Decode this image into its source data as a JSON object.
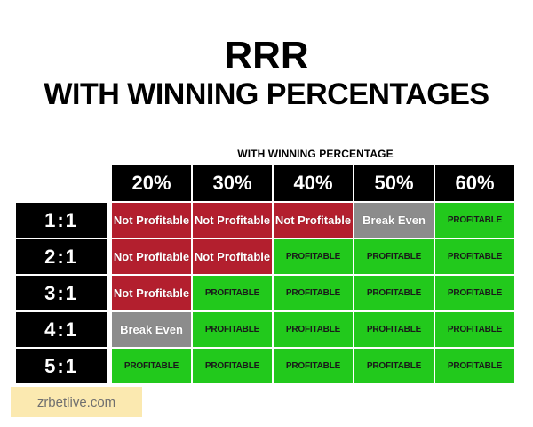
{
  "title": {
    "line1": "RRR",
    "line2": "WITH WINNING PERCENTAGES"
  },
  "table": {
    "subheader": "WITH WINNING PERCENTAGE",
    "columns": [
      "20%",
      "30%",
      "40%",
      "50%",
      "60%"
    ],
    "rows": [
      {
        "ratio": "1:1",
        "cells": [
          "Not Profitable",
          "Not Profitable",
          "Not Profitable",
          "Break Even",
          "PROFITABLE"
        ]
      },
      {
        "ratio": "2:1",
        "cells": [
          "Not Profitable",
          "Not Profitable",
          "PROFITABLE",
          "PROFITABLE",
          "PROFITABLE"
        ]
      },
      {
        "ratio": "3:1",
        "cells": [
          "Not Profitable",
          "PROFITABLE",
          "PROFITABLE",
          "PROFITABLE",
          "PROFITABLE"
        ]
      },
      {
        "ratio": "4:1",
        "cells": [
          "Break Even",
          "PROFITABLE",
          "PROFITABLE",
          "PROFITABLE",
          "PROFITABLE"
        ]
      },
      {
        "ratio": "5:1",
        "cells": [
          "PROFITABLE",
          "PROFITABLE",
          "PROFITABLE",
          "PROFITABLE",
          "PROFITABLE"
        ]
      }
    ]
  },
  "colors": {
    "profitable": "#22c91c",
    "not_profitable": "#b31f2e",
    "break_even": "#8c8c8c",
    "header": "#000000"
  },
  "watermark": "zrbetlive.com"
}
